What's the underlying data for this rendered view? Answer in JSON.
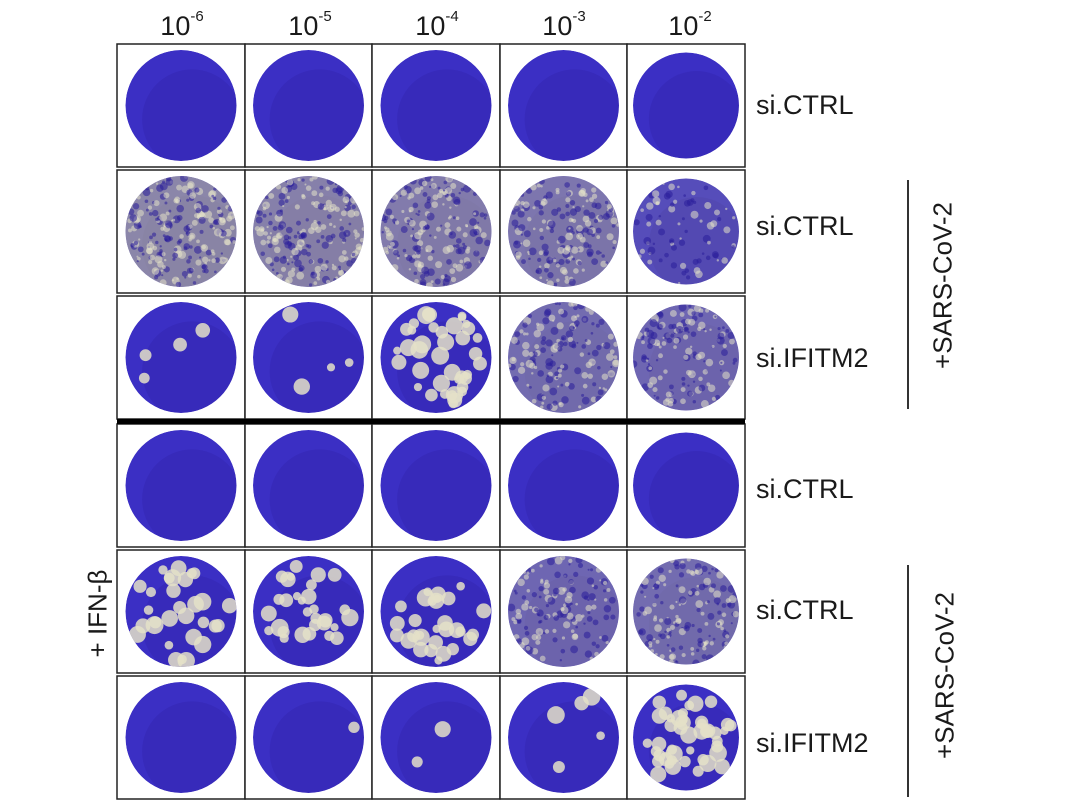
{
  "column_headers": [
    {
      "base": "10",
      "exp": "-6"
    },
    {
      "base": "10",
      "exp": "-5"
    },
    {
      "base": "10",
      "exp": "-4"
    },
    {
      "base": "10",
      "exp": "-3"
    },
    {
      "base": "10",
      "exp": "-2"
    }
  ],
  "rows": [
    {
      "label": "si.CTRL",
      "plaques": [
        0,
        0,
        0,
        0,
        0
      ],
      "lysis": [
        0,
        0,
        0,
        0,
        0
      ]
    },
    {
      "label": "si.CTRL",
      "plaques": [
        0,
        0,
        0,
        0,
        0
      ],
      "lysis": [
        0.85,
        0.8,
        0.75,
        0.7,
        0.3
      ]
    },
    {
      "label": "si.IFITM2",
      "plaques": [
        4,
        4,
        40,
        0,
        0
      ],
      "lysis": [
        0,
        0,
        0,
        0.6,
        0.55
      ]
    },
    {
      "label": "si.CTRL",
      "plaques": [
        0,
        0,
        0,
        0,
        0
      ],
      "lysis": [
        0,
        0,
        0,
        0,
        0
      ]
    },
    {
      "label": "si.CTRL",
      "plaques": [
        30,
        30,
        30,
        0,
        0
      ],
      "lysis": [
        0,
        0,
        0,
        0.55,
        0.6
      ]
    },
    {
      "label": "si.IFITM2",
      "plaques": [
        0,
        1,
        2,
        5,
        45
      ],
      "lysis": [
        0,
        0,
        0,
        0,
        0
      ]
    }
  ],
  "group_labels": [
    "+SARS-CoV-2",
    "+SARS-CoV-2"
  ],
  "side_label": "+ IFN-β",
  "colors": {
    "well": "#3b2fc4",
    "well_dark": "#2a1d9a",
    "lysis": "#b9b79a",
    "plaque": "#e4e1c8",
    "grid": "#222222",
    "divider": "#000000"
  }
}
